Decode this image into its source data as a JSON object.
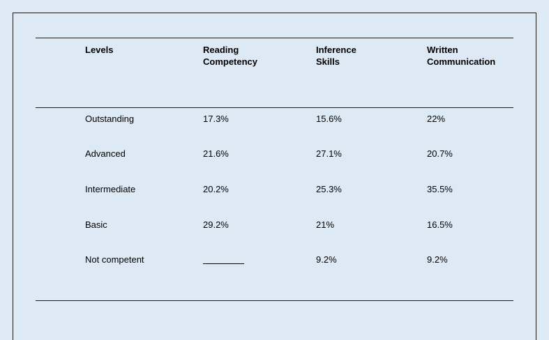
{
  "table": {
    "headers": {
      "levels": "Levels",
      "reading_line1": "Reading",
      "reading_line2": "Competency",
      "inference_line1": "Inference",
      "inference_line2": "Skills",
      "written_line1": "Written",
      "written_line2": "Communication"
    },
    "rows": [
      {
        "level": "Outstanding",
        "reading": "17.3%",
        "inference": "15.6%",
        "written": "22%"
      },
      {
        "level": "Advanced",
        "reading": "21.6%",
        "inference": "27.1%",
        "written": "20.7%"
      },
      {
        "level": "Intermediate",
        "reading": "20.2%",
        "inference": "25.3%",
        "written": "35.5%"
      },
      {
        "level": "Basic",
        "reading": "29.2%",
        "inference": "21%",
        "written": "16.5%"
      },
      {
        "level": "Not competent",
        "reading": "",
        "inference": "9.2%",
        "written": "9.2%"
      }
    ]
  }
}
